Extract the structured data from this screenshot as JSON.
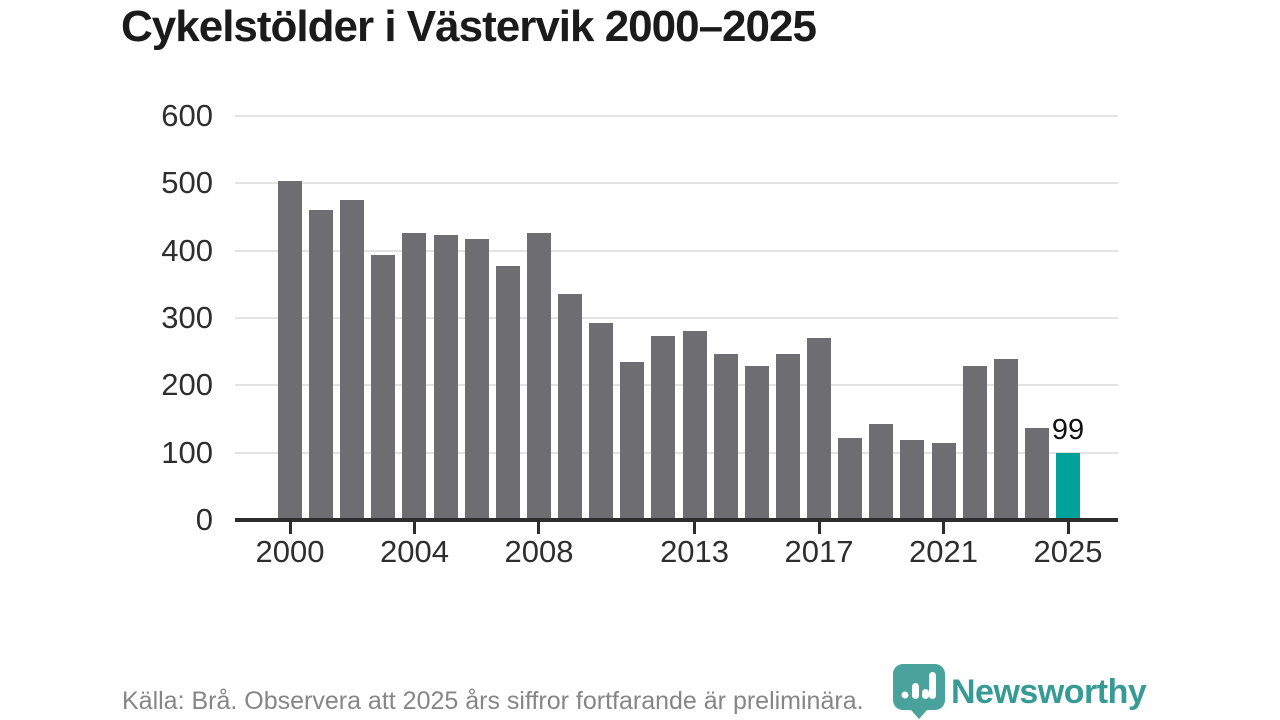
{
  "page": {
    "title": "Cykelstölder i Västervik 2000–2025"
  },
  "footer": {
    "source": "Källa: Brå. Observera att 2025 års siffror fortfarande är preliminära.",
    "brand": "Newsworthy"
  },
  "colors": {
    "bar_gray": "#6d6d72",
    "highlight_teal": "#00a29b",
    "brand_teal": "#389a94",
    "logo_icon_teal": "#4aa29c",
    "axis": "#2d2d2d",
    "gridline": "#e3e3e3"
  },
  "chart_data": {
    "type": "bar",
    "title": "Cykelstölder i Västervik 2000–2025",
    "x": [
      2000,
      2001,
      2002,
      2003,
      2004,
      2005,
      2006,
      2007,
      2008,
      2009,
      2010,
      2011,
      2012,
      2013,
      2014,
      2015,
      2016,
      2017,
      2018,
      2019,
      2020,
      2021,
      2022,
      2023,
      2024,
      2025
    ],
    "values": [
      504,
      460,
      476,
      393,
      427,
      423,
      417,
      377,
      426,
      335,
      293,
      234,
      273,
      281,
      246,
      228,
      246,
      270,
      122,
      143,
      119,
      114,
      228,
      239,
      136,
      99
    ],
    "xlabel": "",
    "ylabel": "",
    "ylim": [
      0,
      600
    ],
    "yticks": [
      0,
      100,
      200,
      300,
      400,
      500,
      600
    ],
    "xticks": [
      2000,
      2004,
      2008,
      2013,
      2017,
      2021,
      2025
    ],
    "grid": "horizontal",
    "legend": "none",
    "bar_color": "#6d6d72",
    "highlight_color": "#00a29b",
    "highlight_year": 2025,
    "highlight_value_label": "99"
  }
}
